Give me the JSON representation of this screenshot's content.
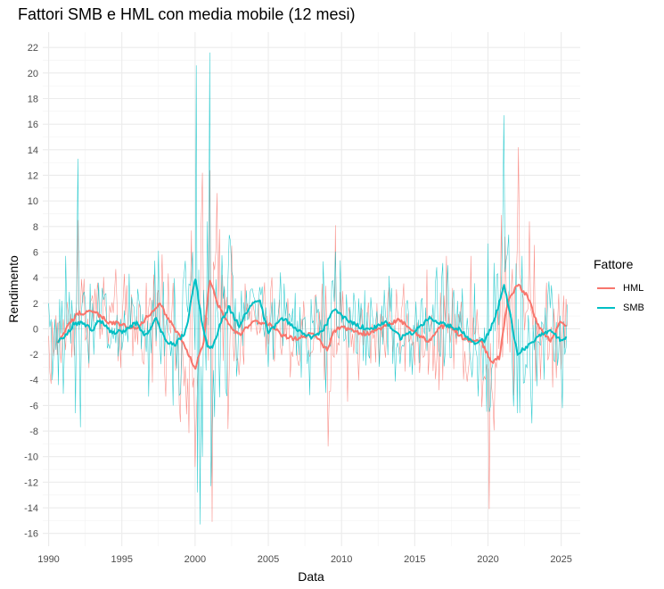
{
  "chart_data": {
    "type": "line",
    "title": "Fattori SMB e HML con media mobile (12 mesi)",
    "xlabel": "Data",
    "ylabel": "Rendimento",
    "xlim": [
      1989.6,
      2026.3
    ],
    "ylim": [
      -17.0,
      23.2
    ],
    "x_ticks": [
      1990,
      1995,
      2000,
      2005,
      2010,
      2015,
      2020,
      2025
    ],
    "y_ticks": [
      -16,
      -14,
      -12,
      -10,
      -8,
      -6,
      -4,
      -2,
      0,
      2,
      4,
      6,
      8,
      10,
      12,
      14,
      16,
      18,
      20,
      22
    ],
    "grid": true,
    "legend": {
      "title": "Fattore",
      "position": "right"
    },
    "series": [
      {
        "name": "HML",
        "color": "#F8766D",
        "moving_average_window": 12,
        "monthly_peaks": [
          {
            "x": 1990.1,
            "y": -3.4
          },
          {
            "x": 1992.0,
            "y": 8.5
          },
          {
            "x": 1993.3,
            "y": 3.6
          },
          {
            "x": 1997.1,
            "y": -4.2
          },
          {
            "x": 1998.9,
            "y": -5.9
          },
          {
            "x": 2000.0,
            "y": -10.8
          },
          {
            "x": 2000.5,
            "y": 12.2
          },
          {
            "x": 2001.0,
            "y": 12.4
          },
          {
            "x": 2001.2,
            "y": -15.1
          },
          {
            "x": 2002.2,
            "y": 2.5
          },
          {
            "x": 2009.1,
            "y": -9.2
          },
          {
            "x": 2009.6,
            "y": 8.1
          },
          {
            "x": 2010.4,
            "y": -5.7
          },
          {
            "x": 2016.7,
            "y": -4.8
          },
          {
            "x": 2017.2,
            "y": 5.7
          },
          {
            "x": 2018.8,
            "y": 5.7
          },
          {
            "x": 2019.7,
            "y": -4.1
          },
          {
            "x": 2020.1,
            "y": -14.1
          },
          {
            "x": 2020.9,
            "y": 8.9
          },
          {
            "x": 2021.2,
            "y": 7.2
          },
          {
            "x": 2022.1,
            "y": 14.2
          },
          {
            "x": 2022.8,
            "y": 8.4
          },
          {
            "x": 2024.4,
            "y": -4.6
          },
          {
            "x": 2025.2,
            "y": 2.6
          }
        ],
        "moving_average_points": [
          {
            "x": 1990.6,
            "y": -1.2
          },
          {
            "x": 1991.2,
            "y": 0.0
          },
          {
            "x": 1992.0,
            "y": 1.2
          },
          {
            "x": 1993.0,
            "y": 1.4
          },
          {
            "x": 1994.0,
            "y": 0.6
          },
          {
            "x": 1995.0,
            "y": 0.3
          },
          {
            "x": 1996.0,
            "y": 0.1
          },
          {
            "x": 1997.0,
            "y": 1.2
          },
          {
            "x": 1997.6,
            "y": 1.9
          },
          {
            "x": 1998.4,
            "y": 0.4
          },
          {
            "x": 1999.2,
            "y": -1.1
          },
          {
            "x": 2000.0,
            "y": -3.1
          },
          {
            "x": 2000.6,
            "y": -1.0
          },
          {
            "x": 2001.0,
            "y": 3.9
          },
          {
            "x": 2001.6,
            "y": 1.8
          },
          {
            "x": 2002.3,
            "y": 0.4
          },
          {
            "x": 2003.0,
            "y": -0.5
          },
          {
            "x": 2004.0,
            "y": 0.6
          },
          {
            "x": 2005.0,
            "y": 0.4
          },
          {
            "x": 2006.0,
            "y": -0.6
          },
          {
            "x": 2007.0,
            "y": -0.8
          },
          {
            "x": 2008.0,
            "y": -0.3
          },
          {
            "x": 2009.0,
            "y": -1.6
          },
          {
            "x": 2009.5,
            "y": -0.2
          },
          {
            "x": 2010.0,
            "y": 0.2
          },
          {
            "x": 2011.0,
            "y": -0.3
          },
          {
            "x": 2012.0,
            "y": -0.4
          },
          {
            "x": 2013.0,
            "y": 0.3
          },
          {
            "x": 2014.0,
            "y": 0.7
          },
          {
            "x": 2015.0,
            "y": -0.3
          },
          {
            "x": 2016.0,
            "y": -1.0
          },
          {
            "x": 2016.8,
            "y": 0.2
          },
          {
            "x": 2017.5,
            "y": 0.1
          },
          {
            "x": 2018.5,
            "y": -0.9
          },
          {
            "x": 2019.5,
            "y": -0.9
          },
          {
            "x": 2020.3,
            "y": -2.7
          },
          {
            "x": 2020.8,
            "y": -2.2
          },
          {
            "x": 2021.3,
            "y": 1.9
          },
          {
            "x": 2022.0,
            "y": 3.5
          },
          {
            "x": 2022.8,
            "y": 2.4
          },
          {
            "x": 2023.5,
            "y": 0.0
          },
          {
            "x": 2024.3,
            "y": -0.9
          },
          {
            "x": 2025.0,
            "y": 0.6
          },
          {
            "x": 2025.4,
            "y": 0.0
          }
        ]
      },
      {
        "name": "SMB",
        "color": "#00BFC4",
        "moving_average_window": 12,
        "monthly_peaks": [
          {
            "x": 1990.0,
            "y": 2.0
          },
          {
            "x": 1990.7,
            "y": -4.4
          },
          {
            "x": 1991.2,
            "y": 5.7
          },
          {
            "x": 1991.8,
            "y": -6.6
          },
          {
            "x": 1992.0,
            "y": 13.3
          },
          {
            "x": 1992.2,
            "y": -7.7
          },
          {
            "x": 1996.8,
            "y": -5.3
          },
          {
            "x": 1998.5,
            "y": -6.0
          },
          {
            "x": 1998.9,
            "y": -5.2
          },
          {
            "x": 1999.6,
            "y": 3.5
          },
          {
            "x": 2000.1,
            "y": 20.6
          },
          {
            "x": 2000.2,
            "y": -12.8
          },
          {
            "x": 2000.3,
            "y": -15.3
          },
          {
            "x": 2000.5,
            "y": -10.0
          },
          {
            "x": 2000.8,
            "y": 8.4
          },
          {
            "x": 2001.0,
            "y": 21.6
          },
          {
            "x": 2001.1,
            "y": -12.3
          },
          {
            "x": 2002.0,
            "y": 3.3
          },
          {
            "x": 2008.9,
            "y": -5.0
          },
          {
            "x": 2009.3,
            "y": 3.7
          },
          {
            "x": 2016.4,
            "y": 3.6
          },
          {
            "x": 2018.9,
            "y": -3.8
          },
          {
            "x": 2020.1,
            "y": -6.5
          },
          {
            "x": 2020.6,
            "y": 4.2
          },
          {
            "x": 2021.1,
            "y": 16.7
          },
          {
            "x": 2021.3,
            "y": 5.9
          },
          {
            "x": 2022.0,
            "y": -6.6
          },
          {
            "x": 2022.3,
            "y": 5.7
          },
          {
            "x": 2023.0,
            "y": -7.4
          },
          {
            "x": 2024.3,
            "y": 3.4
          },
          {
            "x": 2025.1,
            "y": -6.2
          },
          {
            "x": 2025.4,
            "y": 1.9
          }
        ],
        "moving_average_points": [
          {
            "x": 1990.6,
            "y": -1.0
          },
          {
            "x": 1991.1,
            "y": -0.7
          },
          {
            "x": 1991.7,
            "y": 0.4
          },
          {
            "x": 1992.3,
            "y": 0.5
          },
          {
            "x": 1993.0,
            "y": -0.1
          },
          {
            "x": 1993.5,
            "y": 0.7
          },
          {
            "x": 1994.2,
            "y": -0.2
          },
          {
            "x": 1995.0,
            "y": -0.3
          },
          {
            "x": 1996.0,
            "y": 0.5
          },
          {
            "x": 1996.6,
            "y": -0.6
          },
          {
            "x": 1997.3,
            "y": 0.8
          },
          {
            "x": 1998.0,
            "y": -1.0
          },
          {
            "x": 1998.7,
            "y": -1.2
          },
          {
            "x": 1999.4,
            "y": -0.1
          },
          {
            "x": 2000.0,
            "y": 4.1
          },
          {
            "x": 2000.5,
            "y": 0.3
          },
          {
            "x": 2000.8,
            "y": -1.2
          },
          {
            "x": 2001.2,
            "y": -1.5
          },
          {
            "x": 2001.7,
            "y": 0.3
          },
          {
            "x": 2002.3,
            "y": 1.7
          },
          {
            "x": 2003.0,
            "y": 0.2
          },
          {
            "x": 2003.8,
            "y": 1.9
          },
          {
            "x": 2004.4,
            "y": 2.3
          },
          {
            "x": 2005.0,
            "y": -0.3
          },
          {
            "x": 2006.0,
            "y": 0.8
          },
          {
            "x": 2007.0,
            "y": -0.1
          },
          {
            "x": 2008.0,
            "y": -0.7
          },
          {
            "x": 2008.8,
            "y": 0.0
          },
          {
            "x": 2009.5,
            "y": 1.6
          },
          {
            "x": 2010.0,
            "y": 1.0
          },
          {
            "x": 2011.0,
            "y": 0.3
          },
          {
            "x": 2012.0,
            "y": -0.1
          },
          {
            "x": 2013.0,
            "y": 0.6
          },
          {
            "x": 2014.0,
            "y": -0.7
          },
          {
            "x": 2015.0,
            "y": -0.2
          },
          {
            "x": 2016.0,
            "y": 0.9
          },
          {
            "x": 2017.0,
            "y": 0.3
          },
          {
            "x": 2018.0,
            "y": 0.0
          },
          {
            "x": 2019.0,
            "y": -1.1
          },
          {
            "x": 2019.8,
            "y": -0.9
          },
          {
            "x": 2020.5,
            "y": 0.8
          },
          {
            "x": 2021.1,
            "y": 3.6
          },
          {
            "x": 2021.6,
            "y": 0.6
          },
          {
            "x": 2022.0,
            "y": -2.0
          },
          {
            "x": 2022.5,
            "y": -1.5
          },
          {
            "x": 2023.0,
            "y": -1.1
          },
          {
            "x": 2023.7,
            "y": -0.4
          },
          {
            "x": 2024.3,
            "y": -0.1
          },
          {
            "x": 2025.0,
            "y": -1.0
          },
          {
            "x": 2025.4,
            "y": -0.5
          }
        ]
      }
    ]
  }
}
